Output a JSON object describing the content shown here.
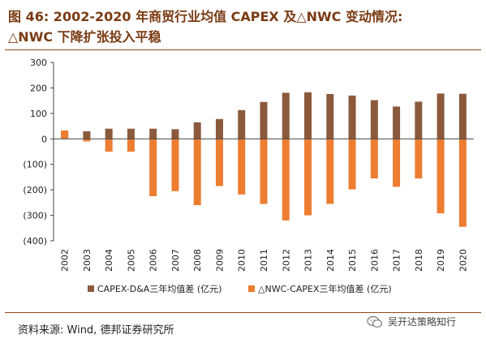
{
  "title": {
    "line1": "图 46: 2002-2020 年商贸行业均值 CAPEX 及△NWC 变动情况:",
    "line2": "△NWC 下降扩张投入平稳"
  },
  "source": "资料来源: Wind, 德邦证券研究所",
  "watermark": "吴开达策略知行",
  "colors": {
    "title": "#7a3b13",
    "capex": "#8b5a3c",
    "nwc": "#ed7d31",
    "axis": "#444444",
    "rule": "#8b4a1f"
  },
  "chart_data": {
    "type": "bar",
    "categories": [
      "2002",
      "2003",
      "2004",
      "2005",
      "2006",
      "2007",
      "2008",
      "2009",
      "2010",
      "2011",
      "2012",
      "2013",
      "2014",
      "2015",
      "2016",
      "2017",
      "2018",
      "2019",
      "2020"
    ],
    "series": [
      {
        "name": "CAPEX-D&A三年均值差 (亿元)",
        "values": [
          28,
          30,
          40,
          40,
          40,
          38,
          65,
          78,
          113,
          145,
          181,
          183,
          176,
          170,
          152,
          127,
          146,
          178,
          177
        ]
      },
      {
        "name": "△NWC-CAPEX三年均值差 (亿元)",
        "values": [
          33,
          -10,
          -50,
          -50,
          -225,
          -205,
          -260,
          -185,
          -218,
          -255,
          -320,
          -300,
          -255,
          -198,
          -155,
          -188,
          -155,
          -292,
          -345
        ]
      }
    ],
    "ylim": [
      -400,
      300
    ],
    "yticks": [
      300,
      200,
      100,
      0,
      -100,
      -200,
      -300,
      -400
    ],
    "ytick_labels": [
      "300",
      "200",
      "100",
      "0",
      "(100)",
      "(200)",
      "(300)",
      "(400)"
    ],
    "legend_position": "bottom",
    "grid": false
  }
}
